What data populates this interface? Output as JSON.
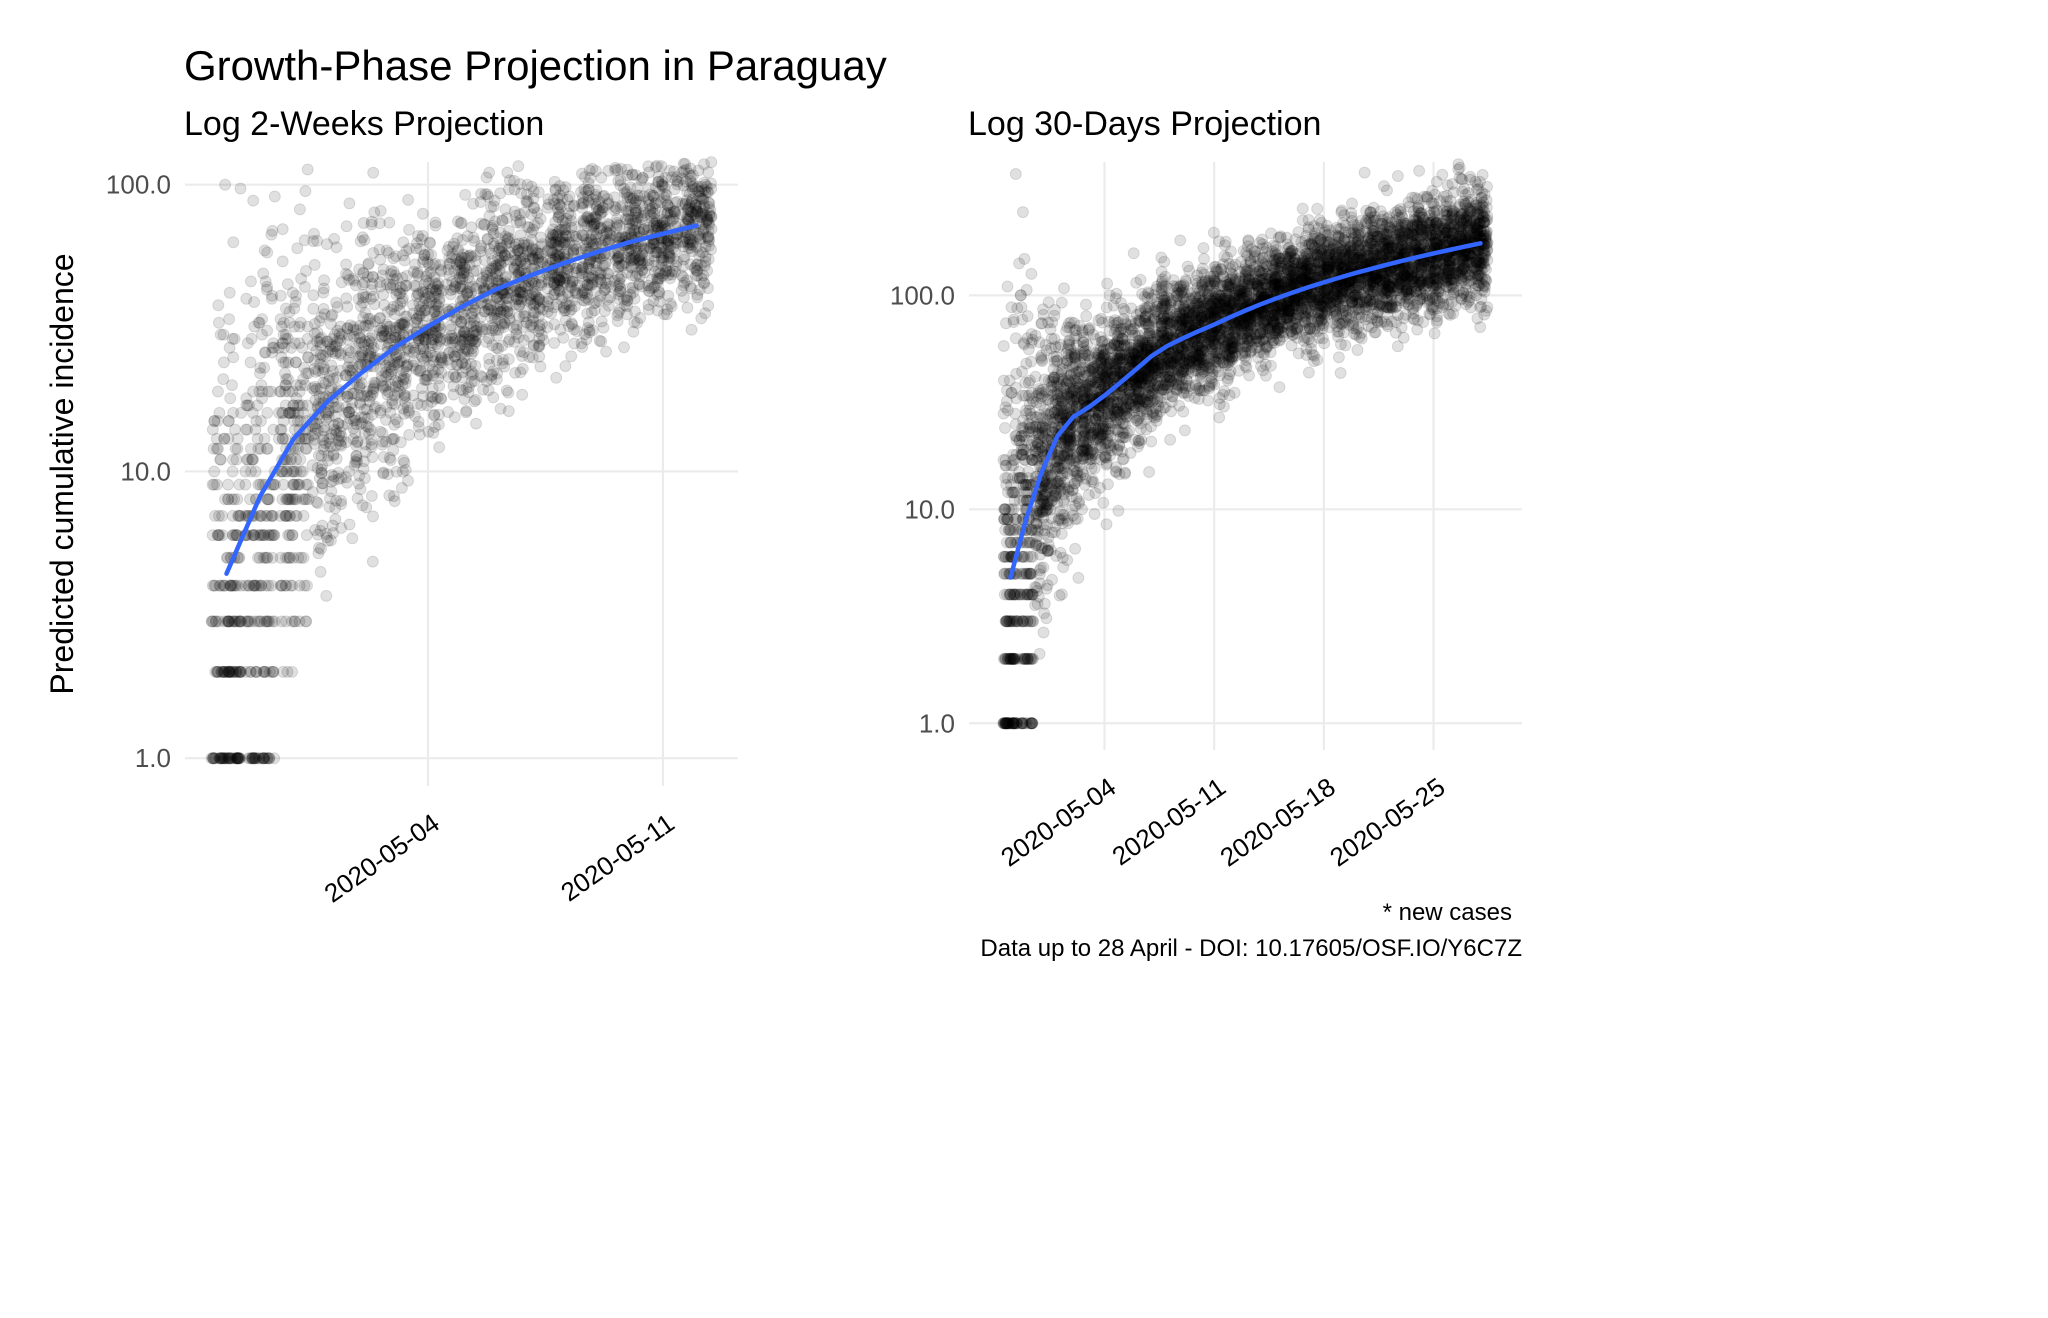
{
  "figure": {
    "title": "Growth-Phase Projection in Paraguay",
    "ylabel": "Predicted cumulative incidence",
    "caption": [
      "* new cases",
      "Data up to 28 April - DOI: 10.17605/OSF.IO/Y6C7Z"
    ]
  },
  "colors": {
    "trend": "#3366FF",
    "points": "#000000",
    "grid": "#EBEBEB",
    "text": "#000000",
    "tick_text": "#4D4D4D"
  },
  "chart_data": [
    {
      "type": "scatter",
      "title": "Log 2-Weeks Projection",
      "xlabel": "",
      "ylabel": "Predicted cumulative incidence",
      "y_scale": "log10",
      "x_scale": "date",
      "xlim": [
        "2020-04-28",
        "2020-05-12"
      ],
      "ylim": [
        0.8,
        120
      ],
      "x_ticks": [
        "2020-05-04",
        "2020-05-11"
      ],
      "y_ticks": [
        1,
        10,
        100
      ],
      "y_tick_labels": [
        "1.0",
        "10.0",
        "100.0"
      ],
      "grid": true,
      "point_alpha": 0.12,
      "simulated_draws_per_day": 200,
      "series": [
        {
          "x": [
            "2020-04-28",
            "2020-04-29",
            "2020-04-30",
            "2020-05-01",
            "2020-05-02",
            "2020-05-03",
            "2020-05-04",
            "2020-05-05",
            "2020-05-06",
            "2020-05-07",
            "2020-05-08",
            "2020-05-09",
            "2020-05-10",
            "2020-05-11",
            "2020-05-12"
          ],
          "y": [
            4.4,
            8.2,
            13,
            17.5,
            22,
            27,
            32,
            37.5,
            43,
            48,
            53,
            58,
            63,
            67.5,
            72
          ],
          "y_spread": [
            0.58,
            0.5,
            0.34,
            0.28,
            0.24,
            0.21,
            0.19,
            0.18,
            0.17,
            0.16,
            0.15,
            0.15,
            0.14,
            0.14,
            0.14
          ]
        }
      ]
    },
    {
      "type": "scatter",
      "title": "Log 30-Days Projection",
      "xlabel": "",
      "ylabel": "",
      "y_scale": "log10",
      "x_scale": "date",
      "xlim": [
        "2020-04-28",
        "2020-05-28"
      ],
      "ylim": [
        0.75,
        420
      ],
      "x_ticks": [
        "2020-05-04",
        "2020-05-11",
        "2020-05-18",
        "2020-05-25"
      ],
      "y_ticks": [
        1,
        10,
        100
      ],
      "y_tick_labels": [
        "1.0",
        "10.0",
        "100.0"
      ],
      "grid": true,
      "point_alpha": 0.12,
      "simulated_draws_per_day": 200,
      "series": [
        {
          "x": [
            "2020-04-28",
            "2020-04-29",
            "2020-04-30",
            "2020-05-01",
            "2020-05-02",
            "2020-05-03",
            "2020-05-04",
            "2020-05-05",
            "2020-05-06",
            "2020-05-07",
            "2020-05-08",
            "2020-05-09",
            "2020-05-10",
            "2020-05-11",
            "2020-05-12",
            "2020-05-13",
            "2020-05-14",
            "2020-05-15",
            "2020-05-16",
            "2020-05-17",
            "2020-05-18",
            "2020-05-19",
            "2020-05-20",
            "2020-05-21",
            "2020-05-22",
            "2020-05-23",
            "2020-05-24",
            "2020-05-25",
            "2020-05-26",
            "2020-05-27",
            "2020-05-28"
          ],
          "y": [
            4.8,
            9,
            15,
            22,
            27,
            30,
            34,
            39,
            45,
            52,
            58,
            63,
            68,
            73,
            79,
            85,
            91,
            97,
            103,
            109,
            115,
            121,
            127,
            133,
            139,
            145,
            151,
            157,
            163,
            169,
            175
          ],
          "y_spread": [
            0.58,
            0.5,
            0.34,
            0.26,
            0.22,
            0.2,
            0.18,
            0.17,
            0.16,
            0.15,
            0.15,
            0.14,
            0.14,
            0.14,
            0.13,
            0.13,
            0.13,
            0.13,
            0.13,
            0.13,
            0.13,
            0.13,
            0.13,
            0.13,
            0.13,
            0.13,
            0.13,
            0.13,
            0.13,
            0.13,
            0.13
          ]
        }
      ]
    }
  ]
}
